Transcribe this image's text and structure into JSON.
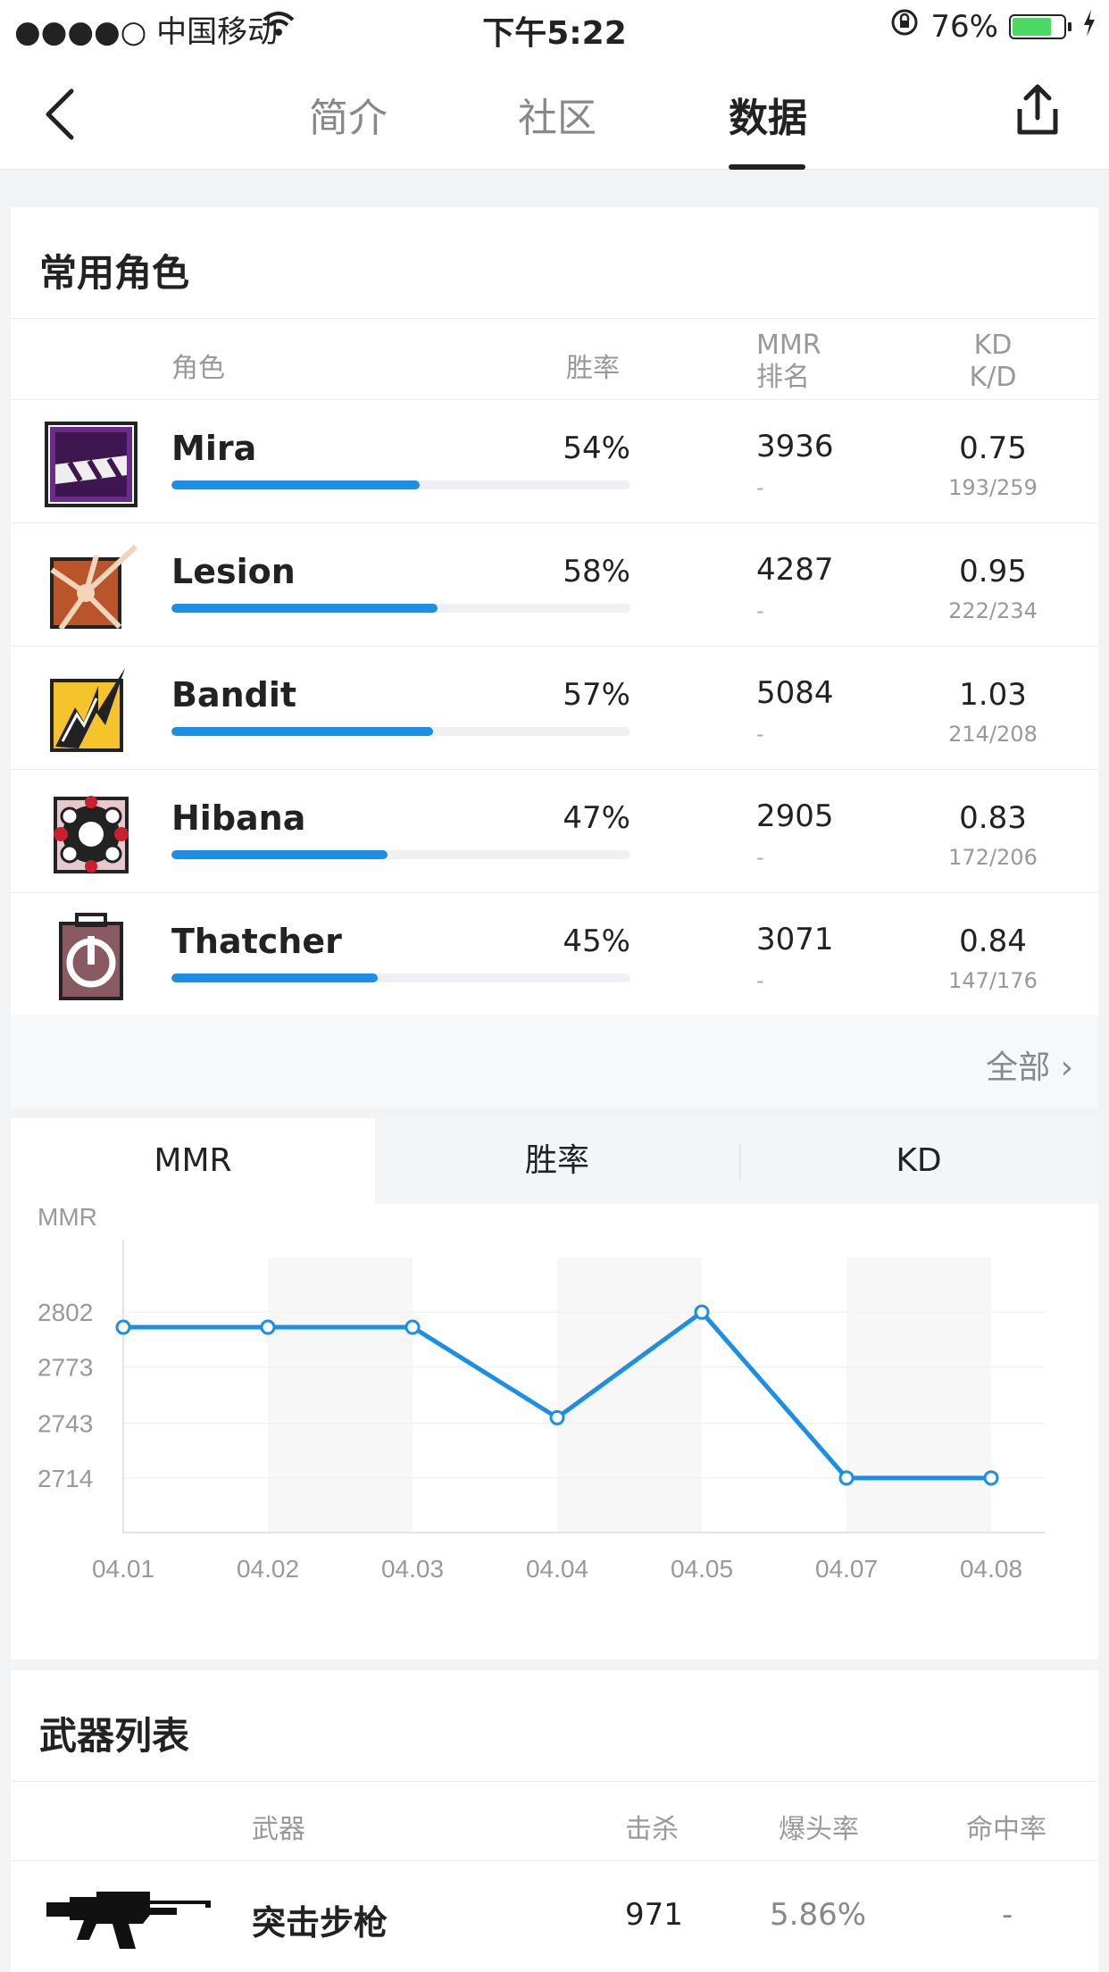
{
  "status_bar": {
    "carrier": "●●●●○ 中国移动",
    "time": "下午5:22",
    "battery": "76%",
    "battery_level": 0.76
  },
  "nav": {
    "tabs": [
      "简介",
      "社区",
      "数据"
    ],
    "active_tab": "数据"
  },
  "roles": {
    "title": "常用角色",
    "headers": {
      "role": "角色",
      "win": "胜率",
      "mmr_line1": "MMR",
      "mmr_line2": "排名",
      "kd_line1": "KD",
      "kd_line2": "K/D"
    },
    "rows": [
      {
        "name": "Mira",
        "win": "54%",
        "win_value": 54,
        "mmr": "3936",
        "rank": "-",
        "kd": "0.75",
        "kd_detail": "193/259",
        "icon": "mira-icon"
      },
      {
        "name": "Lesion",
        "win": "58%",
        "win_value": 58,
        "mmr": "4287",
        "rank": "-",
        "kd": "0.95",
        "kd_detail": "222/234",
        "icon": "lesion-icon"
      },
      {
        "name": "Bandit",
        "win": "57%",
        "win_value": 57,
        "mmr": "5084",
        "rank": "-",
        "kd": "1.03",
        "kd_detail": "214/208",
        "icon": "bandit-icon"
      },
      {
        "name": "Hibana",
        "win": "47%",
        "win_value": 47,
        "mmr": "2905",
        "rank": "-",
        "kd": "0.83",
        "kd_detail": "172/206",
        "icon": "hibana-icon"
      },
      {
        "name": "Thatcher",
        "win": "45%",
        "win_value": 45,
        "mmr": "3071",
        "rank": "-",
        "kd": "0.84",
        "kd_detail": "147/176",
        "icon": "thatcher-icon"
      }
    ],
    "all_label": "全部 ›"
  },
  "chart_tabs": [
    "MMR",
    "胜率",
    "KD"
  ],
  "chart_data": {
    "type": "line",
    "ylabel": "MMR",
    "categories": [
      "04.01",
      "04.02",
      "04.03",
      "04.04",
      "04.05",
      "04.07",
      "04.08"
    ],
    "series": [
      {
        "values": [
          2794,
          2794,
          2794,
          2746,
          2802,
          2714,
          2714
        ]
      }
    ],
    "yticks": [
      2802,
      2773,
      2743,
      2714
    ],
    "ylim": [
      2685,
      2831
    ],
    "line_color": "#1b8ee6",
    "grid": true
  },
  "weapons": {
    "title": "武器列表",
    "headers": {
      "weapon": "武器",
      "kills": "击杀",
      "headshot": "爆头率",
      "accuracy": "命中率"
    },
    "rows": [
      {
        "name": "突击步枪",
        "kills": "971",
        "headshot": "5.86%",
        "accuracy": "-",
        "icon": "assault-rifle-icon"
      }
    ]
  }
}
